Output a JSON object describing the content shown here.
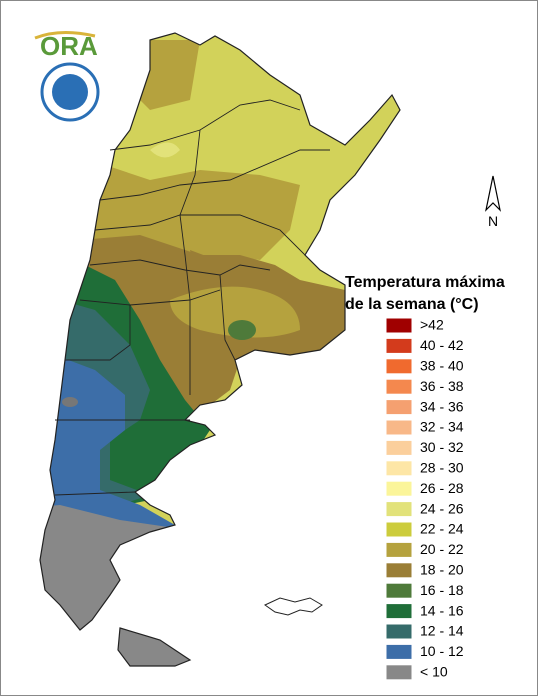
{
  "logo": {
    "text": "ORA"
  },
  "north_label": "N",
  "legend": {
    "title": [
      "Temperatura máxima",
      "de la semana (°C)"
    ],
    "items": [
      {
        "label": ">42",
        "color": "#a00000"
      },
      {
        "label": "40 - 42",
        "color": "#d33b1c"
      },
      {
        "label": "38 - 40",
        "color": "#f06a2e"
      },
      {
        "label": "36 - 38",
        "color": "#f4884e"
      },
      {
        "label": "34 - 36",
        "color": "#f5a070"
      },
      {
        "label": "32 - 34",
        "color": "#f8b888"
      },
      {
        "label": "30 - 32",
        "color": "#fbcf9c"
      },
      {
        "label": "28 - 30",
        "color": "#fde6a6"
      },
      {
        "label": "26 - 28",
        "color": "#fbf59a"
      },
      {
        "label": "24 - 26",
        "color": "#e2e27a"
      },
      {
        "label": "22 - 24",
        "color": "#cccc3c"
      },
      {
        "label": "20 - 22",
        "color": "#b5a23e"
      },
      {
        "label": "18 - 20",
        "color": "#9a7e36"
      },
      {
        "label": "16 - 18",
        "color": "#4e7a3a"
      },
      {
        "label": "14 - 16",
        "color": "#1f6e38"
      },
      {
        "label": "12 - 14",
        "color": "#356b6a"
      },
      {
        "label": "10 - 12",
        "color": "#3d6ea8"
      },
      {
        "label": "< 10",
        "color": "#888888"
      }
    ]
  }
}
